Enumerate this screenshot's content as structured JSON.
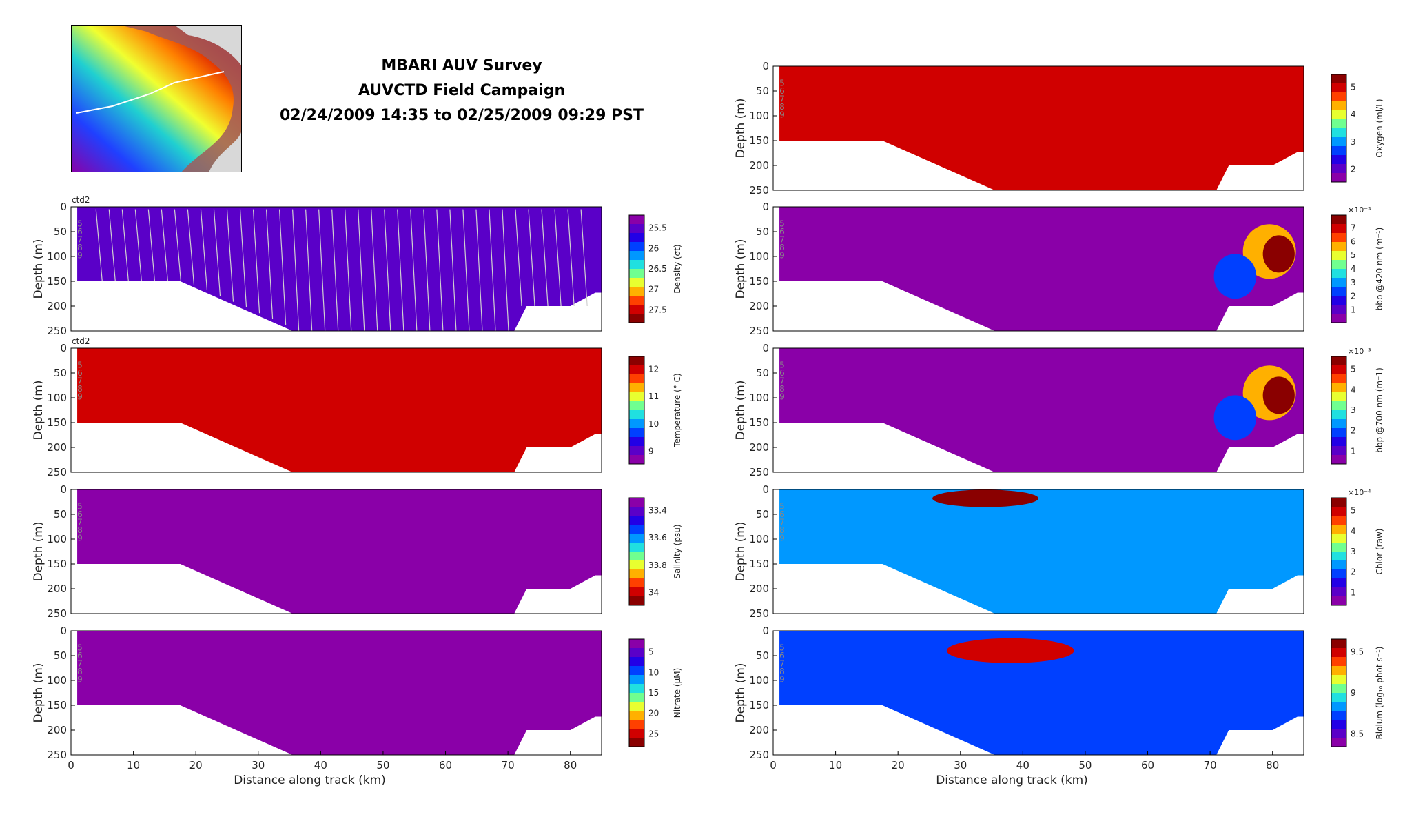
{
  "title": {
    "line1": "MBARI AUV Survey",
    "line2": "AUVCTD Field Campaign",
    "line3": "02/24/2009 14:35 to 02/25/2009 09:29 PST"
  },
  "colors": {
    "palette": [
      "#8a00a8",
      "#5a00c8",
      "#2200e6",
      "#0040ff",
      "#0098ff",
      "#20e0e0",
      "#70ff90",
      "#e8ff30",
      "#ffb000",
      "#ff4000",
      "#d00000",
      "#8a0000"
    ],
    "land": "#a05a5a",
    "track": "#ffffff"
  },
  "map": {
    "icon": "bathymetry-map-icon"
  },
  "chart_data": [
    {
      "type": "heatmap",
      "panel": "density",
      "ylabel": "Depth (m)",
      "top_label": "ctd2",
      "xlim": [
        0,
        85
      ],
      "ylim": [
        250,
        0
      ],
      "yticks": [
        "0",
        "50",
        "100",
        "150",
        "200",
        "250"
      ],
      "xticks": [],
      "colorbar": {
        "label": "Density (σt)",
        "ticks": [
          "25.5",
          "26",
          "26.5",
          "27",
          "27.5"
        ],
        "reversed": true
      },
      "depth_side_labels": [
        "5",
        "6",
        "7",
        "8",
        "9"
      ],
      "profile_lines": true
    },
    {
      "type": "heatmap",
      "panel": "temperature",
      "ylabel": "Depth (m)",
      "top_label": "ctd2",
      "xlim": [
        0,
        85
      ],
      "ylim": [
        250,
        0
      ],
      "yticks": [
        "0",
        "50",
        "100",
        "150",
        "200",
        "250"
      ],
      "xticks": [],
      "colorbar": {
        "label": "Temperature (° C)",
        "ticks": [
          "12",
          "11",
          "10",
          "9"
        ],
        "reversed": false
      },
      "depth_side_labels": [
        "5",
        "6",
        "7",
        "8",
        "9"
      ]
    },
    {
      "type": "heatmap",
      "panel": "salinity",
      "ylabel": "Depth (m)",
      "top_label": "",
      "xlim": [
        0,
        85
      ],
      "ylim": [
        250,
        0
      ],
      "yticks": [
        "0",
        "50",
        "100",
        "150",
        "200",
        "250"
      ],
      "xticks": [],
      "colorbar": {
        "label": "Salinity (psu)",
        "ticks": [
          "33.4",
          "33.6",
          "33.8",
          "34"
        ],
        "reversed": true
      },
      "depth_side_labels": [
        "5",
        "6",
        "7",
        "8",
        "9"
      ]
    },
    {
      "type": "heatmap",
      "panel": "nitrate",
      "ylabel": "Depth (m)",
      "top_label": "",
      "xlim": [
        0,
        85
      ],
      "ylim": [
        250,
        0
      ],
      "yticks": [
        "0",
        "50",
        "100",
        "150",
        "200",
        "250"
      ],
      "xticks": [
        "0",
        "10",
        "20",
        "30",
        "40",
        "50",
        "60",
        "70",
        "80"
      ],
      "xlabel": "Distance along track (km)",
      "colorbar": {
        "label": "Nitrate (μM)",
        "ticks": [
          "5",
          "10",
          "15",
          "20",
          "25"
        ],
        "reversed": true
      },
      "depth_side_labels": [
        "5",
        "6",
        "7",
        "8",
        "9"
      ]
    },
    {
      "type": "heatmap",
      "panel": "oxygen",
      "ylabel": "Depth (m)",
      "top_label": "",
      "xlim": [
        0,
        85
      ],
      "ylim": [
        250,
        0
      ],
      "yticks": [
        "0",
        "50",
        "100",
        "150",
        "200",
        "250"
      ],
      "xticks": [],
      "colorbar": {
        "label": "Oxygen (ml/L)",
        "ticks": [
          "5",
          "4",
          "3",
          "2"
        ],
        "reversed": false
      },
      "depth_side_labels": [
        "5",
        "6",
        "7",
        "8",
        "9"
      ]
    },
    {
      "type": "heatmap",
      "panel": "bbp420",
      "ylabel": "Depth (m)",
      "top_label": "",
      "xlim": [
        0,
        85
      ],
      "ylim": [
        250,
        0
      ],
      "yticks": [
        "0",
        "50",
        "100",
        "150",
        "200",
        "250"
      ],
      "xticks": [],
      "colorbar": {
        "label": "bbp @420 nm (m⁻¹)",
        "ticks": [
          "7",
          "6",
          "5",
          "4",
          "3",
          "2",
          "1"
        ],
        "reversed": false,
        "exponent": "×10⁻³"
      },
      "depth_side_labels": [
        "5",
        "6",
        "7",
        "8",
        "9"
      ]
    },
    {
      "type": "heatmap",
      "panel": "bbp700",
      "ylabel": "Depth (m)",
      "top_label": "",
      "xlim": [
        0,
        85
      ],
      "ylim": [
        250,
        0
      ],
      "yticks": [
        "0",
        "50",
        "100",
        "150",
        "200",
        "250"
      ],
      "xticks": [],
      "colorbar": {
        "label": "bbp @700 nm (m⁻1)",
        "ticks": [
          "5",
          "4",
          "3",
          "2",
          "1"
        ],
        "reversed": false,
        "exponent": "×10⁻³"
      },
      "depth_side_labels": [
        "5",
        "6",
        "7",
        "8",
        "9"
      ]
    },
    {
      "type": "heatmap",
      "panel": "chlor",
      "ylabel": "Depth (m)",
      "top_label": "",
      "xlim": [
        0,
        85
      ],
      "ylim": [
        250,
        0
      ],
      "yticks": [
        "0",
        "50",
        "100",
        "150",
        "200",
        "250"
      ],
      "xticks": [],
      "colorbar": {
        "label": "Chlor (raw)",
        "ticks": [
          "5",
          "4",
          "3",
          "2",
          "1"
        ],
        "reversed": false,
        "exponent": "×10⁻⁴"
      },
      "depth_side_labels": [
        "5",
        "6",
        "7",
        "8",
        "9"
      ]
    },
    {
      "type": "heatmap",
      "panel": "biolum",
      "ylabel": "Depth (m)",
      "top_label": "",
      "xlim": [
        0,
        85
      ],
      "ylim": [
        250,
        0
      ],
      "yticks": [
        "0",
        "50",
        "100",
        "150",
        "200",
        "250"
      ],
      "xticks": [
        "0",
        "10",
        "20",
        "30",
        "40",
        "50",
        "60",
        "70",
        "80"
      ],
      "xlabel": "Distance along track (km)",
      "colorbar": {
        "label": "Biolum (log₁₀ phot s⁻¹)",
        "ticks": [
          "9.5",
          "9",
          "8.5"
        ],
        "reversed": false
      },
      "depth_side_labels": [
        "5",
        "6",
        "7",
        "8",
        "9"
      ]
    }
  ]
}
